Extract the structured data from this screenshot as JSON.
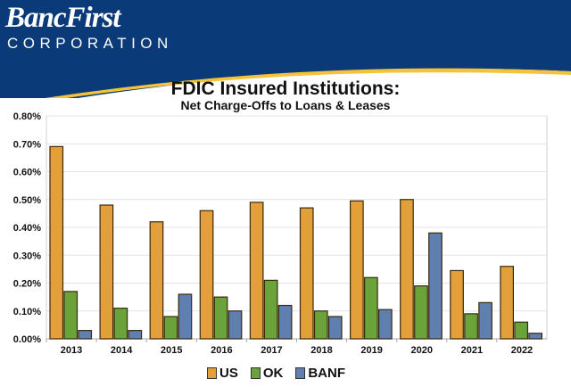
{
  "header": {
    "logo_main": "BancFirst",
    "logo_sub": "CORPORATION",
    "brand_blue": "#0b3f7a",
    "brand_gold": "#f5c33b"
  },
  "chart_data": {
    "type": "bar",
    "title": "FDIC Insured Institutions:",
    "subtitle": "Net Charge-Offs to Loans & Leases",
    "categories": [
      "2013",
      "2014",
      "2015",
      "2016",
      "2017",
      "2018",
      "2019",
      "2020",
      "2021",
      "2022"
    ],
    "series": [
      {
        "name": "US",
        "color": "#e29f3a",
        "values": [
          0.69,
          0.48,
          0.42,
          0.46,
          0.49,
          0.47,
          0.495,
          0.5,
          0.245,
          0.26
        ]
      },
      {
        "name": "OK",
        "color": "#6aa33a",
        "values": [
          0.17,
          0.11,
          0.08,
          0.15,
          0.21,
          0.1,
          0.22,
          0.19,
          0.09,
          0.06
        ]
      },
      {
        "name": "BANF",
        "color": "#5f7fae",
        "values": [
          0.03,
          0.03,
          0.16,
          0.1,
          0.12,
          0.08,
          0.105,
          0.38,
          0.13,
          0.02
        ]
      }
    ],
    "ylim": [
      0,
      0.8
    ],
    "yticks": [
      "0.00%",
      "0.10%",
      "0.20%",
      "0.30%",
      "0.40%",
      "0.50%",
      "0.60%",
      "0.70%",
      "0.80%"
    ],
    "grid": true,
    "legend": "bottom"
  }
}
